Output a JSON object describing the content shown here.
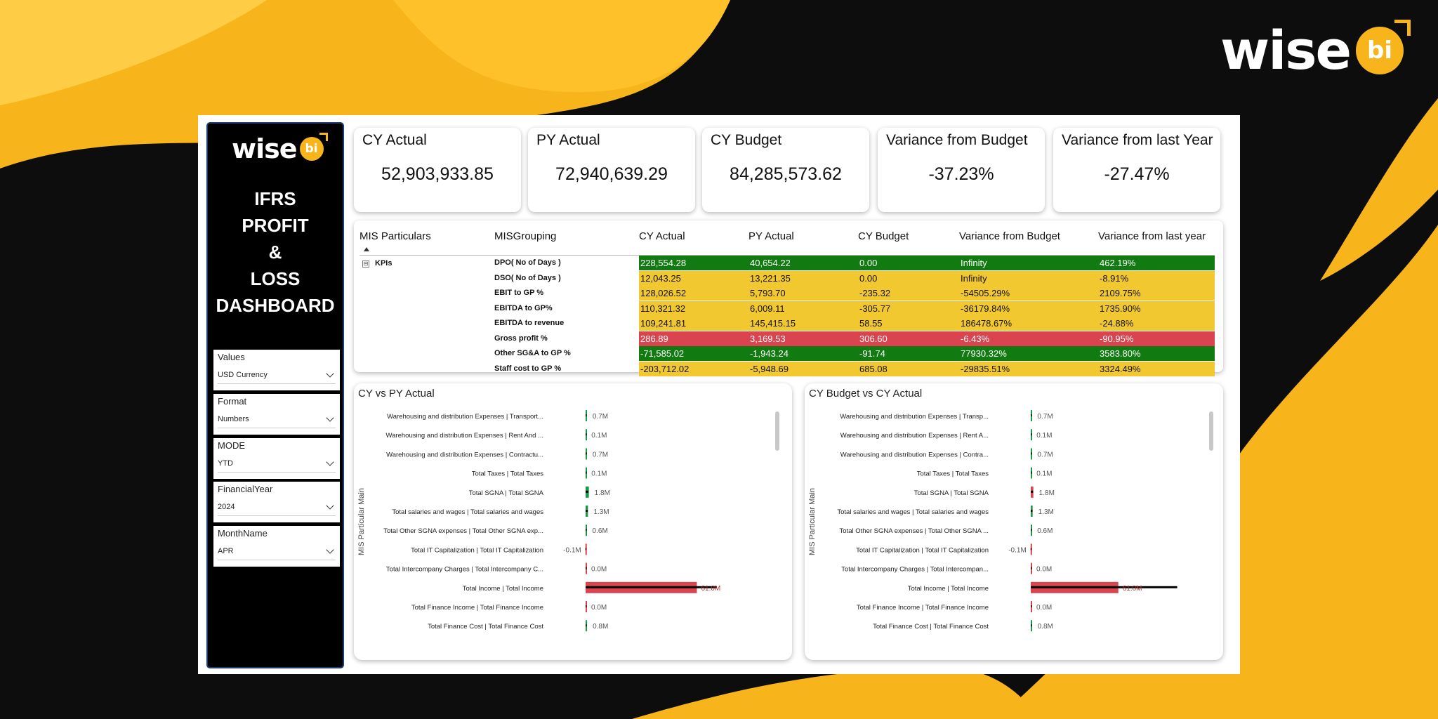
{
  "brand": {
    "word": "wise",
    "badge": "bi"
  },
  "sidebar": {
    "title_lines": [
      "IFRS",
      "PROFIT",
      "&",
      "LOSS",
      "DASHBOARD"
    ],
    "slicers": [
      {
        "label": "Values",
        "value": "USD Currency"
      },
      {
        "label": "Format",
        "value": "Numbers"
      },
      {
        "label": "MODE",
        "value": "YTD"
      },
      {
        "label": "FinancialYear",
        "value": "2024"
      },
      {
        "label": "MonthName",
        "value": "APR"
      }
    ]
  },
  "cards": [
    {
      "title": "CY Actual",
      "value": "52,903,933.85"
    },
    {
      "title": "PY Actual",
      "value": "72,940,639.29"
    },
    {
      "title": "CY Budget",
      "value": "84,285,573.62"
    },
    {
      "title": "Variance from Budget",
      "value": "-37.23%"
    },
    {
      "title": "Variance from last Year",
      "value": "-27.47%"
    }
  ],
  "matrix": {
    "headers": [
      "MIS Particulars",
      "MISGrouping",
      "CY Actual",
      "PY Actual",
      "CY Budget",
      "Variance from Budget",
      "Variance from last year"
    ],
    "group": "KPIs",
    "collapse_glyph": "⊟",
    "status_colors": {
      "green": "#117a11",
      "yellow": "#f2c830",
      "red": "#d9444f"
    },
    "rows": [
      {
        "grouping": "DPO( No of Days )",
        "cy_actual": "228,554.28",
        "py_actual": "40,654.22",
        "cy_budget": "0.00",
        "var_budget": "Infinity",
        "var_last_year": "462.19%",
        "status": "green"
      },
      {
        "grouping": "DSO( No of Days )",
        "cy_actual": "12,043.25",
        "py_actual": "13,221.35",
        "cy_budget": "0.00",
        "var_budget": "Infinity",
        "var_last_year": "-8.91%",
        "status": "yellow"
      },
      {
        "grouping": "EBIT to GP %",
        "cy_actual": "128,026.52",
        "py_actual": "5,793.70",
        "cy_budget": "-235.32",
        "var_budget": "-54505.29%",
        "var_last_year": "2109.75%",
        "status": "yellow"
      },
      {
        "grouping": "EBITDA to GP%",
        "cy_actual": "110,321.32",
        "py_actual": "6,009.11",
        "cy_budget": "-305.77",
        "var_budget": "-36179.84%",
        "var_last_year": "1735.90%",
        "status": "yellow"
      },
      {
        "grouping": "EBITDA to revenue",
        "cy_actual": "109,241.81",
        "py_actual": "145,415.15",
        "cy_budget": "58.55",
        "var_budget": "186478.67%",
        "var_last_year": "-24.88%",
        "status": "yellow"
      },
      {
        "grouping": "Gross profit %",
        "cy_actual": "286.89",
        "py_actual": "3,169.53",
        "cy_budget": "306.60",
        "var_budget": "-6.43%",
        "var_last_year": "-90.95%",
        "status": "red"
      },
      {
        "grouping": "Other SG&A to GP %",
        "cy_actual": "-71,585.02",
        "py_actual": "-1,943.24",
        "cy_budget": "-91.74",
        "var_budget": "77930.32%",
        "var_last_year": "3583.80%",
        "status": "green"
      },
      {
        "grouping": "Staff cost to GP %",
        "cy_actual": "-203,712.02",
        "py_actual": "-5,948.69",
        "cy_budget": "685.08",
        "var_budget": "-29835.51%",
        "var_last_year": "3324.49%",
        "status": "yellow"
      }
    ]
  },
  "chart_data": [
    {
      "type": "bar",
      "title": "CY vs PY Actual",
      "ylabel": "MIS Particular Main",
      "categories": [
        "Warehousing and distribution Expenses | Transport...",
        "Warehousing and distribution Expenses | Rent And ...",
        "Warehousing and distribution Expenses | Contractu...",
        "Total Taxes | Total Taxes",
        "Total SGNA | Total SGNA",
        "Total salaries and wages | Total salaries and wages",
        "Total Other SGNA expenses | Total Other SGNA exp...",
        "Total IT Capitalization | Total IT Capitalization",
        "Total Intercompany Charges | Total Intercompany C...",
        "Total Income | Total Income",
        "Total Finance Income | Total Finance Income",
        "Total Finance Cost | Total Finance Cost"
      ],
      "labels": [
        "0.7M",
        "0.1M",
        "0.7M",
        "0.1M",
        "1.8M",
        "1.3M",
        "0.6M",
        "-0.1M",
        "0.0M",
        "61.0M",
        "0.0M",
        "0.8M"
      ],
      "series": [
        {
          "values": [
            0.7,
            0.1,
            0.7,
            0.1,
            1.8,
            1.3,
            0.6,
            -0.1,
            0.0,
            61.0,
            0.0,
            0.8
          ]
        },
        {
          "values": [
            0.5,
            0.1,
            0.6,
            0.1,
            1.5,
            1.2,
            0.5,
            -0.1,
            0.0,
            72.0,
            0.0,
            0.6
          ]
        }
      ],
      "xlim": [
        -2,
        95
      ],
      "colors": {
        "increase": "#1a9a46",
        "decrease": "#d9444f",
        "target": "#000000"
      }
    },
    {
      "type": "bar",
      "title": "CY Budget vs CY Actual",
      "ylabel": "MIS Particular Main",
      "categories": [
        "Warehousing and distribution Expenses | Transp...",
        "Warehousing and distribution Expenses | Rent A...",
        "Warehousing and distribution Expenses | Contra...",
        "Total Taxes | Total Taxes",
        "Total SGNA | Total SGNA",
        "Total salaries and wages | Total salaries and wages",
        "Total Other SGNA expenses | Total Other SGNA ...",
        "Total IT Capitalization | Total IT Capitalization",
        "Total Intercompany Charges | Total Intercompan...",
        "Total Income | Total Income",
        "Total Finance Income | Total Finance Income",
        "Total Finance Cost | Total Finance Cost"
      ],
      "labels": [
        "0.7M",
        "0.1M",
        "0.7M",
        "0.1M",
        "1.8M",
        "1.3M",
        "0.6M",
        "-0.1M",
        "0.0M",
        "61.0M",
        "0.0M",
        "0.8M"
      ],
      "series": [
        {
          "values": [
            0.7,
            0.1,
            0.7,
            0.1,
            1.8,
            1.3,
            0.6,
            -0.1,
            0.0,
            61.0,
            0.0,
            0.8
          ]
        },
        {
          "values": [
            0.6,
            0.1,
            0.6,
            0.1,
            1.6,
            1.2,
            0.5,
            -0.1,
            0.0,
            102.0,
            0.0,
            0.6
          ]
        }
      ],
      "xlim": [
        -2,
        112
      ],
      "colors": {
        "increase": "#1a9a46",
        "decrease": "#d9444f",
        "target": "#000000"
      }
    }
  ]
}
